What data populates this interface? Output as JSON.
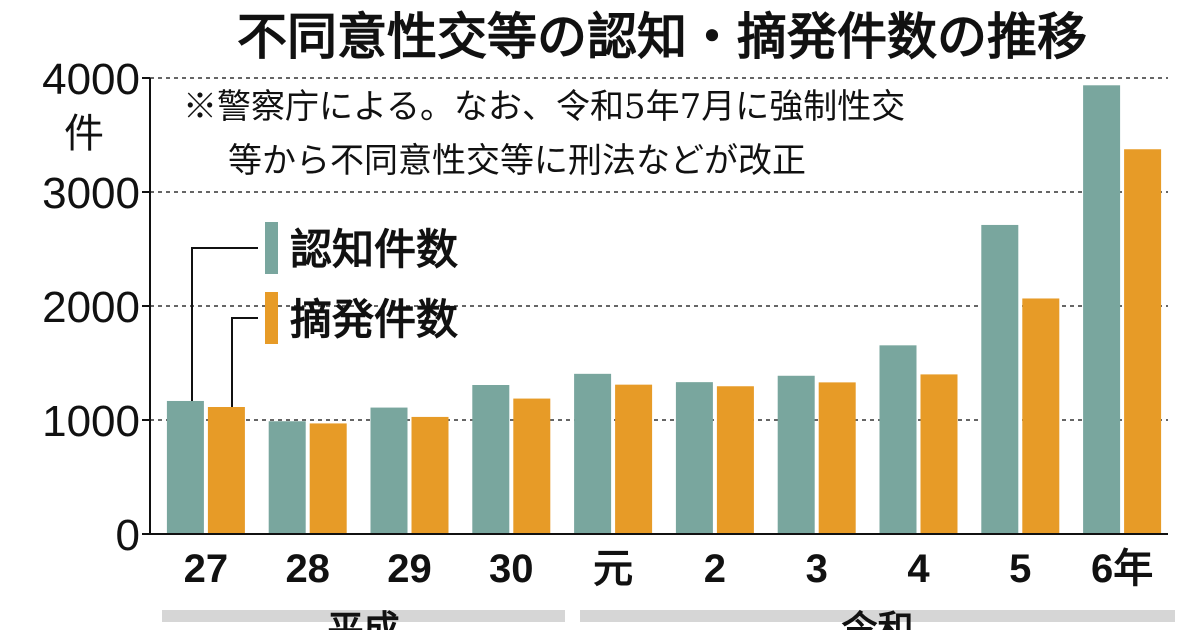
{
  "chart_data": {
    "type": "bar",
    "title": "不同意性交等の認知・摘発件数の推移",
    "note_lines": [
      "※警察庁による。なお、令和5年7月に強制性交",
      "等から不同意性交等に刑法などが改正"
    ],
    "y_unit": "件",
    "ylim": [
      0,
      4000
    ],
    "yticks": [
      "0",
      "1000",
      "2000",
      "3000",
      "4000"
    ],
    "grid": "dashed horizontal",
    "legend_placement": "upper-left",
    "categories": [
      "27",
      "28",
      "29",
      "30",
      "元",
      "2",
      "3",
      "4",
      "5",
      "6年"
    ],
    "eras": [
      {
        "label": "平成",
        "categories": [
          "27",
          "28",
          "29",
          "30"
        ]
      },
      {
        "label": "令和",
        "categories": [
          "元",
          "2",
          "3",
          "4",
          "5",
          "6年"
        ]
      }
    ],
    "series": [
      {
        "name": "認知件数",
        "color": "#79a69e",
        "values": [
          1167,
          989,
          1109,
          1307,
          1405,
          1332,
          1388,
          1655,
          2711,
          3936
        ]
      },
      {
        "name": "摘発件数",
        "color": "#e79b27",
        "values": [
          1114,
          970,
          1027,
          1188,
          1310,
          1296,
          1330,
          1400,
          2066,
          3375
        ]
      }
    ]
  }
}
